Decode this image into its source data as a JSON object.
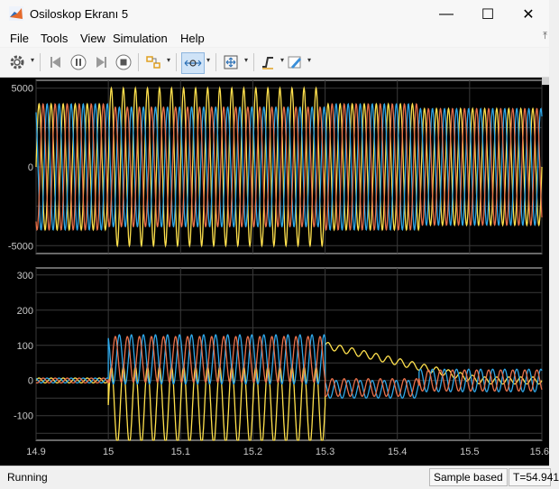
{
  "window": {
    "title": "Osiloskop Ekranı 5",
    "minimize_glyph": "—",
    "maximize_glyph": "☐",
    "close_glyph": "✕"
  },
  "menu": [
    {
      "id": "file",
      "label": "File"
    },
    {
      "id": "tools",
      "label": "Tools"
    },
    {
      "id": "view",
      "label": "View"
    },
    {
      "id": "simulation",
      "label": "Simulation"
    },
    {
      "id": "help",
      "label": "Help"
    }
  ],
  "toolbar": {
    "items": [
      {
        "name": "settings-icon",
        "dropdown": true
      },
      {
        "name": "step-back-icon",
        "dropdown": false
      },
      {
        "name": "pause-icon",
        "dropdown": false
      },
      {
        "name": "step-forward-icon",
        "dropdown": false
      },
      {
        "name": "stop-icon",
        "dropdown": false
      },
      {
        "name": "highlight-block-icon",
        "dropdown": true
      },
      {
        "name": "zoom-x-icon",
        "dropdown": true,
        "active": true
      },
      {
        "name": "autoscale-icon",
        "dropdown": true
      },
      {
        "name": "triggers-icon",
        "dropdown": true
      },
      {
        "name": "style-pen-icon",
        "dropdown": true
      }
    ]
  },
  "colors": {
    "plot_background": "#000000",
    "grid": "#3a3a3a",
    "axis_border": "#d0d0d0",
    "series_yellow": "#ffe14d",
    "series_blue": "#2fa7e8",
    "series_orange": "#e8704a"
  },
  "chart_data": [
    {
      "type": "line",
      "title": "",
      "x_range": [
        14.9,
        15.6
      ],
      "ylim": [
        -5500,
        5500
      ],
      "y_ticks": [
        "5000",
        "0",
        "-5000"
      ],
      "grid": true,
      "series": [
        {
          "color": "yellow",
          "segments": [
            {
              "x_from": 14.9,
              "x_to": 15.0,
              "amplitude": 4000
            },
            {
              "x_from": 15.0,
              "x_to": 15.3,
              "amplitude": 5000
            },
            {
              "x_from": 15.3,
              "x_to": 15.43,
              "amplitude": 4000
            },
            {
              "x_from": 15.43,
              "x_to": 15.6,
              "amplitude": 3700
            }
          ]
        },
        {
          "color": "blue",
          "segments": [
            {
              "x_from": 14.9,
              "x_to": 15.0,
              "amplitude": 4000
            },
            {
              "x_from": 15.0,
              "x_to": 15.3,
              "amplitude": 3800
            },
            {
              "x_from": 15.3,
              "x_to": 15.43,
              "amplitude": 4000
            },
            {
              "x_from": 15.43,
              "x_to": 15.6,
              "amplitude": 3700
            }
          ]
        },
        {
          "color": "orange",
          "segments": [
            {
              "x_from": 14.9,
              "x_to": 15.0,
              "amplitude": 4000
            },
            {
              "x_from": 15.0,
              "x_to": 15.3,
              "amplitude": 3800
            },
            {
              "x_from": 15.3,
              "x_to": 15.43,
              "amplitude": 4000
            },
            {
              "x_from": 15.43,
              "x_to": 15.6,
              "amplitude": 3700
            }
          ]
        }
      ]
    },
    {
      "type": "line",
      "title": "",
      "x_range": [
        14.9,
        15.6
      ],
      "ylim": [
        -170,
        320
      ],
      "x_ticks": [
        "14.9",
        "15",
        "15.1",
        "15.2",
        "15.3",
        "15.4",
        "15.5",
        "15.6"
      ],
      "y_ticks": [
        "300",
        "200",
        "100",
        "0",
        "-100"
      ],
      "grid": true,
      "series": [
        {
          "color": "yellow",
          "note_values": [
            {
              "x_from": 14.9,
              "x_to": 15.0,
              "offset": 0,
              "amplitude": 7
            },
            {
              "x_from": 15.0,
              "x_to": 15.3,
              "offset": -70,
              "amplitude": 110
            },
            {
              "x_from": 15.3,
              "x_to": 15.6,
              "offset": 100,
              "amplitude": 10,
              "decay_to": 0
            }
          ]
        },
        {
          "color": "blue",
          "note_values": [
            {
              "x_from": 14.9,
              "x_to": 15.0,
              "offset": 0,
              "amplitude": 7
            },
            {
              "x_from": 15.0,
              "x_to": 15.3,
              "offset": 60,
              "amplitude": 70
            },
            {
              "x_from": 15.3,
              "x_to": 15.43,
              "offset": -25,
              "amplitude": 25
            },
            {
              "x_from": 15.43,
              "x_to": 15.6,
              "offset": 0,
              "amplitude": 32
            }
          ]
        },
        {
          "color": "orange",
          "note_values": [
            {
              "x_from": 14.9,
              "x_to": 15.0,
              "offset": 0,
              "amplitude": 7
            },
            {
              "x_from": 15.0,
              "x_to": 15.3,
              "offset": 60,
              "amplitude": 65
            },
            {
              "x_from": 15.3,
              "x_to": 15.43,
              "offset": -20,
              "amplitude": 25
            },
            {
              "x_from": 15.43,
              "x_to": 15.6,
              "offset": 0,
              "amplitude": 30
            }
          ]
        }
      ]
    }
  ],
  "status": {
    "state": "Running",
    "sample_mode": "Sample based",
    "time_readout": "T=54.941"
  }
}
